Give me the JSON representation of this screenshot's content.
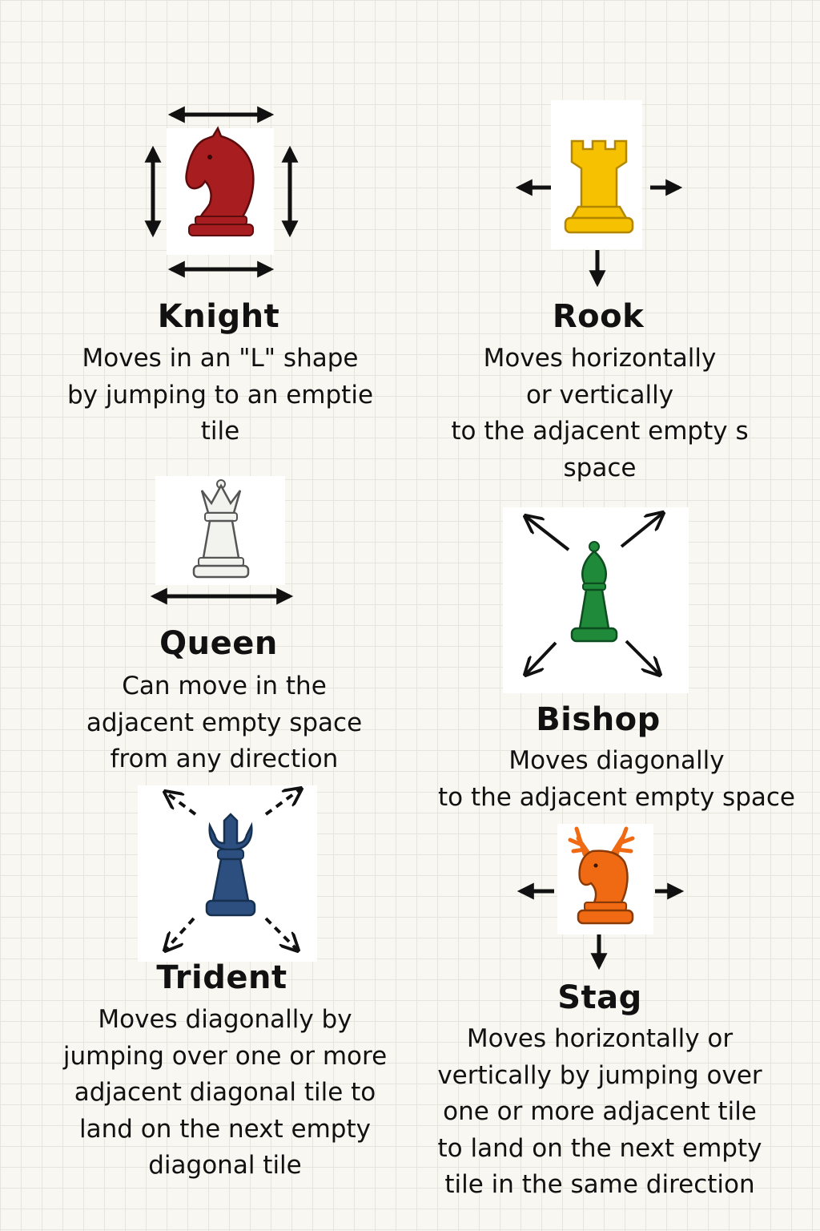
{
  "pieces": {
    "knight": {
      "name": "Knight",
      "color": "#a81e20",
      "icon": "knight-piece-icon",
      "lines": [
        "Moves in an \"L\" shape",
        "by jumping to an emptie",
        "tile"
      ]
    },
    "rook": {
      "name": "Rook",
      "color": "#f6c100",
      "icon": "rook-piece-icon",
      "lines": [
        "Moves horizontally",
        "or vertically",
        "to the adjacent empty s",
        "space"
      ]
    },
    "queen": {
      "name": "Queen",
      "color": "#f2f2ef",
      "icon": "queen-piece-icon",
      "lines": [
        "Can move in the",
        "adjacent empty space",
        "from any direction"
      ]
    },
    "bishop": {
      "name": "Bishop",
      "color": "#1f8a3a",
      "icon": "bishop-piece-icon",
      "lines": [
        "Moves diagonally",
        "to the adjacent empty space"
      ]
    },
    "trident": {
      "name": "Trident",
      "color": "#2c4f80",
      "icon": "trident-piece-icon",
      "lines": [
        "Moves diagonally by",
        "jumping over one or more",
        "adjacent diagonal tile to",
        "land on the next empty",
        "diagonal tile"
      ]
    },
    "stag": {
      "name": "Stag",
      "color": "#ef6a12",
      "icon": "stag-piece-icon",
      "lines": [
        "Moves horizontally or",
        "vertically by jumping over",
        "one or more adjacent tile",
        "to land on the next empty",
        "tile in the same direction"
      ]
    }
  }
}
